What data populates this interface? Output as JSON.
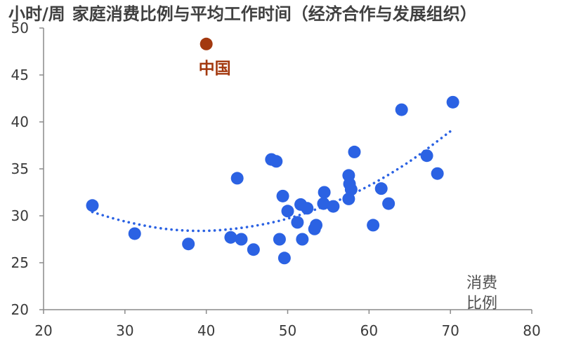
{
  "chart_data": {
    "type": "scatter",
    "ylabel": "小时/周",
    "title": "家庭消费比例与平均工作时间（经济合作与发展组织）",
    "xlabel": [
      "消费",
      "比例"
    ],
    "xlim": [
      20,
      80
    ],
    "ylim": [
      20,
      50
    ],
    "xticks": [
      20,
      30,
      40,
      50,
      60,
      70,
      80
    ],
    "yticks": [
      20,
      25,
      30,
      35,
      40,
      45,
      50
    ],
    "grid": false,
    "colors": {
      "points": "#2b62e3",
      "highlight": "#a3390f",
      "trendline": "#2b62e3"
    },
    "points": [
      {
        "x": 26.0,
        "y": 31.1
      },
      {
        "x": 31.2,
        "y": 28.1
      },
      {
        "x": 37.8,
        "y": 27.0
      },
      {
        "x": 43.0,
        "y": 27.7
      },
      {
        "x": 43.8,
        "y": 34.0
      },
      {
        "x": 44.3,
        "y": 27.5
      },
      {
        "x": 45.8,
        "y": 26.4
      },
      {
        "x": 48.0,
        "y": 36.0
      },
      {
        "x": 48.6,
        "y": 35.8
      },
      {
        "x": 49.0,
        "y": 27.5
      },
      {
        "x": 49.4,
        "y": 32.1
      },
      {
        "x": 49.6,
        "y": 25.5
      },
      {
        "x": 50.0,
        "y": 30.5
      },
      {
        "x": 51.2,
        "y": 29.3
      },
      {
        "x": 51.6,
        "y": 31.2
      },
      {
        "x": 51.8,
        "y": 27.5
      },
      {
        "x": 52.4,
        "y": 30.8
      },
      {
        "x": 53.3,
        "y": 28.6
      },
      {
        "x": 53.5,
        "y": 29.0
      },
      {
        "x": 54.4,
        "y": 31.3
      },
      {
        "x": 54.5,
        "y": 32.5
      },
      {
        "x": 55.6,
        "y": 31.0
      },
      {
        "x": 57.5,
        "y": 34.3
      },
      {
        "x": 57.6,
        "y": 33.4
      },
      {
        "x": 57.8,
        "y": 32.8
      },
      {
        "x": 57.5,
        "y": 31.8
      },
      {
        "x": 58.2,
        "y": 36.8
      },
      {
        "x": 60.5,
        "y": 29.0
      },
      {
        "x": 61.5,
        "y": 32.9
      },
      {
        "x": 62.4,
        "y": 31.3
      },
      {
        "x": 64.0,
        "y": 41.3
      },
      {
        "x": 67.1,
        "y": 36.4
      },
      {
        "x": 68.4,
        "y": 34.5
      },
      {
        "x": 70.3,
        "y": 42.1
      }
    ],
    "highlight": {
      "label": "中国",
      "x": 40.0,
      "y": 48.3
    },
    "trendline": {
      "style": "dotted",
      "points": [
        [
          26,
          30.4
        ],
        [
          30,
          29.4
        ],
        [
          35,
          28.6
        ],
        [
          40,
          28.4
        ],
        [
          45,
          28.8
        ],
        [
          50,
          29.7
        ],
        [
          55,
          31.2
        ],
        [
          60,
          33.2
        ],
        [
          65,
          35.8
        ],
        [
          70,
          39.0
        ]
      ]
    }
  }
}
